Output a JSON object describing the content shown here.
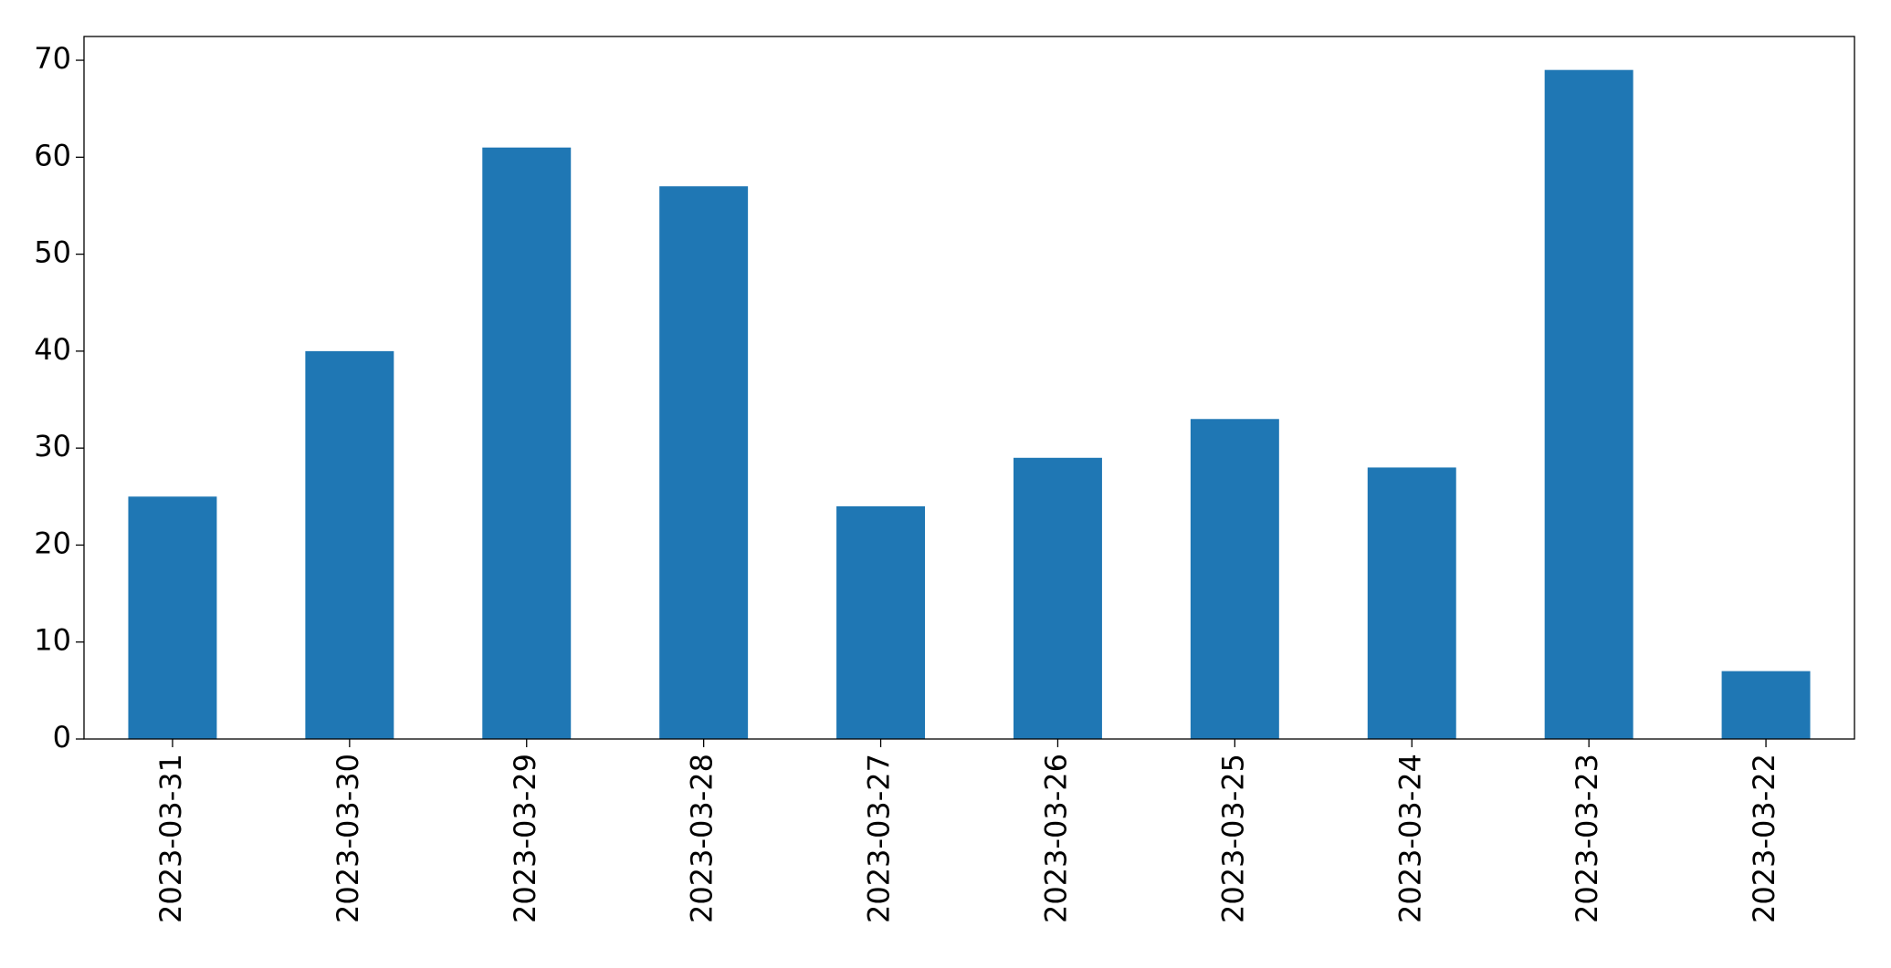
{
  "chart_data": {
    "type": "bar",
    "categories": [
      "2023-03-31",
      "2023-03-30",
      "2023-03-29",
      "2023-03-28",
      "2023-03-27",
      "2023-03-26",
      "2023-03-25",
      "2023-03-24",
      "2023-03-23",
      "2023-03-22"
    ],
    "values": [
      25,
      40,
      61,
      57,
      24,
      29,
      33,
      28,
      69,
      7
    ],
    "color": "#1f77b4",
    "ylim": [
      0,
      72.45
    ],
    "yticks": [
      0,
      10,
      20,
      30,
      40,
      50,
      60,
      70
    ],
    "grid": false
  }
}
